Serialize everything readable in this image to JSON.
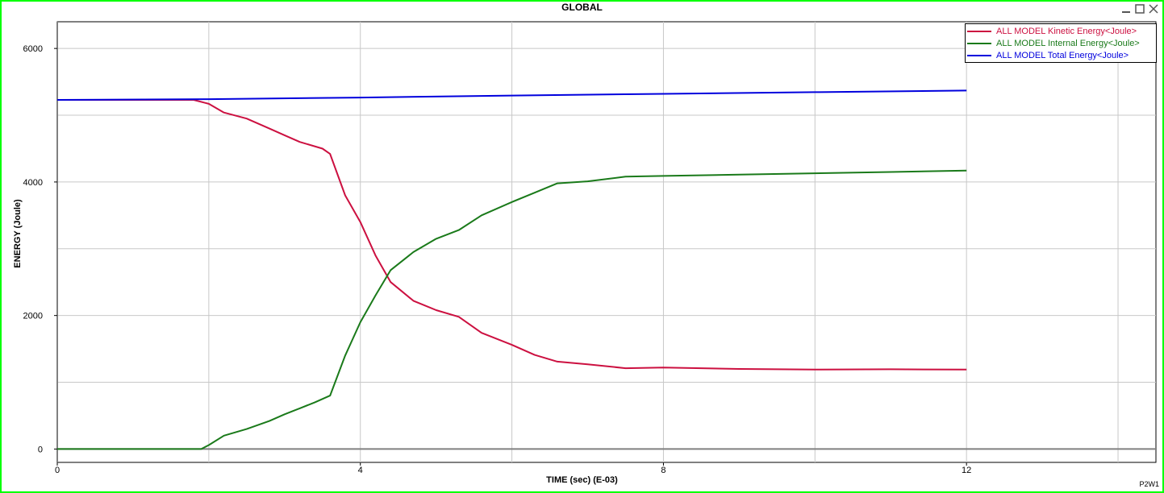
{
  "window": {
    "title": "GLOBAL",
    "viewport_id": "P2W1",
    "frame_color": "#00ff00"
  },
  "chart_data": {
    "type": "line",
    "xlabel": "TIME (sec) (E-03)",
    "ylabel": "ENERGY (Joule)",
    "xlim": [
      0,
      14.5
    ],
    "ylim": [
      -200,
      6400
    ],
    "x_ticks": [
      0,
      4,
      8,
      12
    ],
    "x_tick_labels": [
      "0",
      "4",
      "8",
      "12"
    ],
    "x_grid": [
      2,
      4,
      6,
      8,
      10,
      12,
      14
    ],
    "y_ticks": [
      0,
      2000,
      4000,
      6000
    ],
    "y_tick_labels": [
      "0",
      "2000",
      "4000",
      "6000"
    ],
    "y_grid": [
      1000,
      2000,
      3000,
      4000,
      5000,
      6000
    ],
    "grid": true,
    "legend_position": "top-right",
    "series": [
      {
        "name": "ALL MODEL Kinetic Energy<Joule>",
        "color": "#cc1040",
        "x": [
          0,
          1.8,
          2.0,
          2.2,
          2.5,
          2.8,
          3.0,
          3.2,
          3.5,
          3.6,
          3.8,
          4.0,
          4.2,
          4.4,
          4.7,
          5.0,
          5.3,
          5.6,
          6.0,
          6.3,
          6.6,
          7.0,
          7.5,
          8.0,
          9.0,
          10.0,
          11.0,
          12.0
        ],
        "values": [
          5230,
          5230,
          5170,
          5040,
          4950,
          4800,
          4700,
          4600,
          4500,
          4420,
          3800,
          3400,
          2900,
          2500,
          2220,
          2080,
          1980,
          1740,
          1560,
          1410,
          1310,
          1270,
          1210,
          1220,
          1200,
          1190,
          1195,
          1190
        ]
      },
      {
        "name": "ALL MODEL Internal Energy<Joule>",
        "color": "#1a7a1a",
        "x": [
          0,
          1.9,
          2.0,
          2.2,
          2.5,
          2.8,
          3.0,
          3.2,
          3.4,
          3.6,
          3.8,
          4.0,
          4.2,
          4.4,
          4.7,
          5.0,
          5.3,
          5.6,
          6.0,
          6.3,
          6.6,
          7.0,
          7.5,
          8.0,
          9.0,
          10.0,
          11.0,
          12.0
        ],
        "values": [
          0,
          0,
          60,
          200,
          300,
          420,
          520,
          610,
          700,
          800,
          1400,
          1900,
          2300,
          2680,
          2950,
          3150,
          3280,
          3500,
          3700,
          3840,
          3980,
          4010,
          4080,
          4090,
          4110,
          4130,
          4150,
          4170
        ]
      },
      {
        "name": "ALL MODEL Total Energy<Joule>",
        "color": "#0000dd",
        "x": [
          0,
          2.0,
          4.0,
          6.0,
          8.0,
          10.0,
          12.0
        ],
        "values": [
          5230,
          5240,
          5265,
          5295,
          5320,
          5345,
          5370
        ]
      }
    ]
  }
}
